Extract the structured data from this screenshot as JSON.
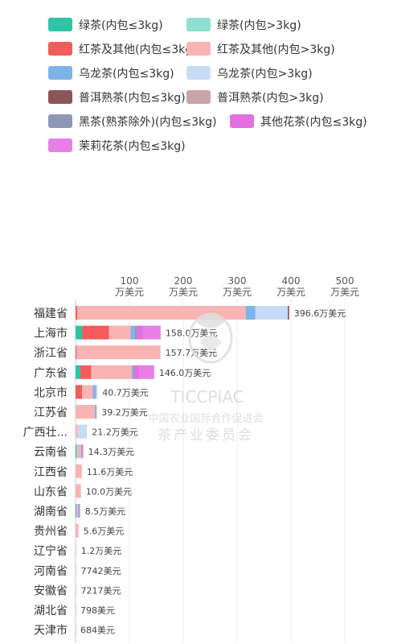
{
  "chart_data": {
    "type": "bar",
    "orientation": "horizontal",
    "stacked": true,
    "legend_position": "top",
    "grid": true,
    "xlim": [
      0,
      500
    ],
    "x_ticks": [
      {
        "value": 100,
        "number": "100",
        "unit": "万美元"
      },
      {
        "value": 200,
        "number": "200",
        "unit": "万美元"
      },
      {
        "value": 300,
        "number": "300",
        "unit": "万美元"
      },
      {
        "value": 400,
        "number": "400",
        "unit": "万美元"
      },
      {
        "value": 500,
        "number": "500",
        "unit": "万美元"
      }
    ],
    "categories": [
      "福建省",
      "上海市",
      "浙江省",
      "广东省",
      "北京市",
      "江苏省",
      "广西壮...",
      "云南省",
      "江西省",
      "山东省",
      "湖南省",
      "贵州省",
      "辽宁省",
      "河南省",
      "安徽省",
      "湖北省",
      "天津市"
    ],
    "data_labels": [
      "396.6万美元",
      "158.0万美元",
      "157.7万美元",
      "146.0万美元",
      "40.7万美元",
      "39.2万美元",
      "21.2万美元",
      "14.3万美元",
      "11.6万美元",
      "10.0万美元",
      "8.5万美元",
      "5.6万美元",
      "1.2万美元",
      "7742美元",
      "7217美元",
      "798美元",
      "684美元"
    ],
    "series": [
      {
        "name": "绿茶(内包≤3kg)",
        "color": "#2ec4a4",
        "values": [
          0,
          12,
          0,
          9,
          0,
          0,
          0,
          2,
          0,
          0,
          1.5,
          0,
          0,
          0,
          0,
          0,
          0
        ]
      },
      {
        "name": "绿茶(内包>3kg)",
        "color": "#8fe0d0",
        "values": [
          0,
          0,
          0,
          0,
          0,
          0,
          0,
          1.5,
          0,
          0,
          1,
          0,
          0,
          0,
          0,
          0,
          0
        ]
      },
      {
        "name": "红茶及其他(内包≤3kg)",
        "color": "#f45b5b",
        "values": [
          3,
          50,
          2,
          20,
          12,
          0,
          0,
          0,
          0,
          0,
          0,
          0,
          0,
          0,
          0,
          0,
          0
        ]
      },
      {
        "name": "红茶及其他(内包>3kg)",
        "color": "#f9b3b3",
        "values": [
          313,
          40,
          155.7,
          75,
          20,
          36,
          4,
          7,
          11.6,
          10,
          2,
          5.6,
          1.2,
          0.774,
          0.722,
          0.08,
          0.068
        ]
      },
      {
        "name": "乌龙茶(内包≤3kg)",
        "color": "#7cb4e8",
        "values": [
          18,
          8,
          0,
          3,
          6,
          3.2,
          0,
          1.5,
          0,
          0,
          1,
          0,
          0,
          0,
          0,
          0,
          0
        ]
      },
      {
        "name": "乌龙茶(内包>3kg)",
        "color": "#c5dcf4",
        "values": [
          60,
          0,
          0,
          0,
          2.7,
          0,
          17.2,
          0,
          0,
          0,
          0,
          0,
          0,
          0,
          0,
          0,
          0
        ]
      },
      {
        "name": "普洱熟茶(内包≤3kg)",
        "color": "#8b5459",
        "values": [
          2.6,
          0,
          0,
          0,
          0,
          0,
          0,
          0,
          0,
          0,
          0,
          0,
          0,
          0,
          0,
          0,
          0
        ]
      },
      {
        "name": "普洱熟茶(内包>3kg)",
        "color": "#c9a5a8",
        "values": [
          0,
          0,
          0,
          0,
          0,
          0,
          0,
          0,
          0,
          0,
          0,
          0,
          0,
          0,
          0,
          0,
          0
        ]
      },
      {
        "name": "黑茶(熟茶除外)(内包≤3kg)",
        "color": "#8d98b6",
        "values": [
          0,
          4,
          0,
          2,
          0,
          0,
          0,
          0,
          0,
          0,
          0,
          0,
          0,
          0,
          0,
          0,
          0
        ]
      },
      {
        "name": "其他花茶(内包≤3kg)",
        "color": "#e46fe0",
        "values": [
          0,
          12,
          0,
          10,
          0,
          0,
          0,
          1,
          0,
          0,
          1.5,
          0,
          0,
          0,
          0,
          0,
          0
        ]
      },
      {
        "name": "茉莉花茶(内包≤3kg)",
        "color": "#e87fe6",
        "values": [
          0,
          32,
          0,
          27,
          0,
          0,
          0,
          1.3,
          0,
          0,
          1.5,
          0,
          0,
          0,
          0,
          0,
          0
        ]
      }
    ],
    "accent_colors": {
      "inner": "#89c9c0",
      "hatch": "#d4d4d4"
    }
  },
  "watermark": {
    "latin": "TICCPIAC",
    "line1": "中国农业国际合作促进会",
    "line2": "茶产业委员会"
  }
}
